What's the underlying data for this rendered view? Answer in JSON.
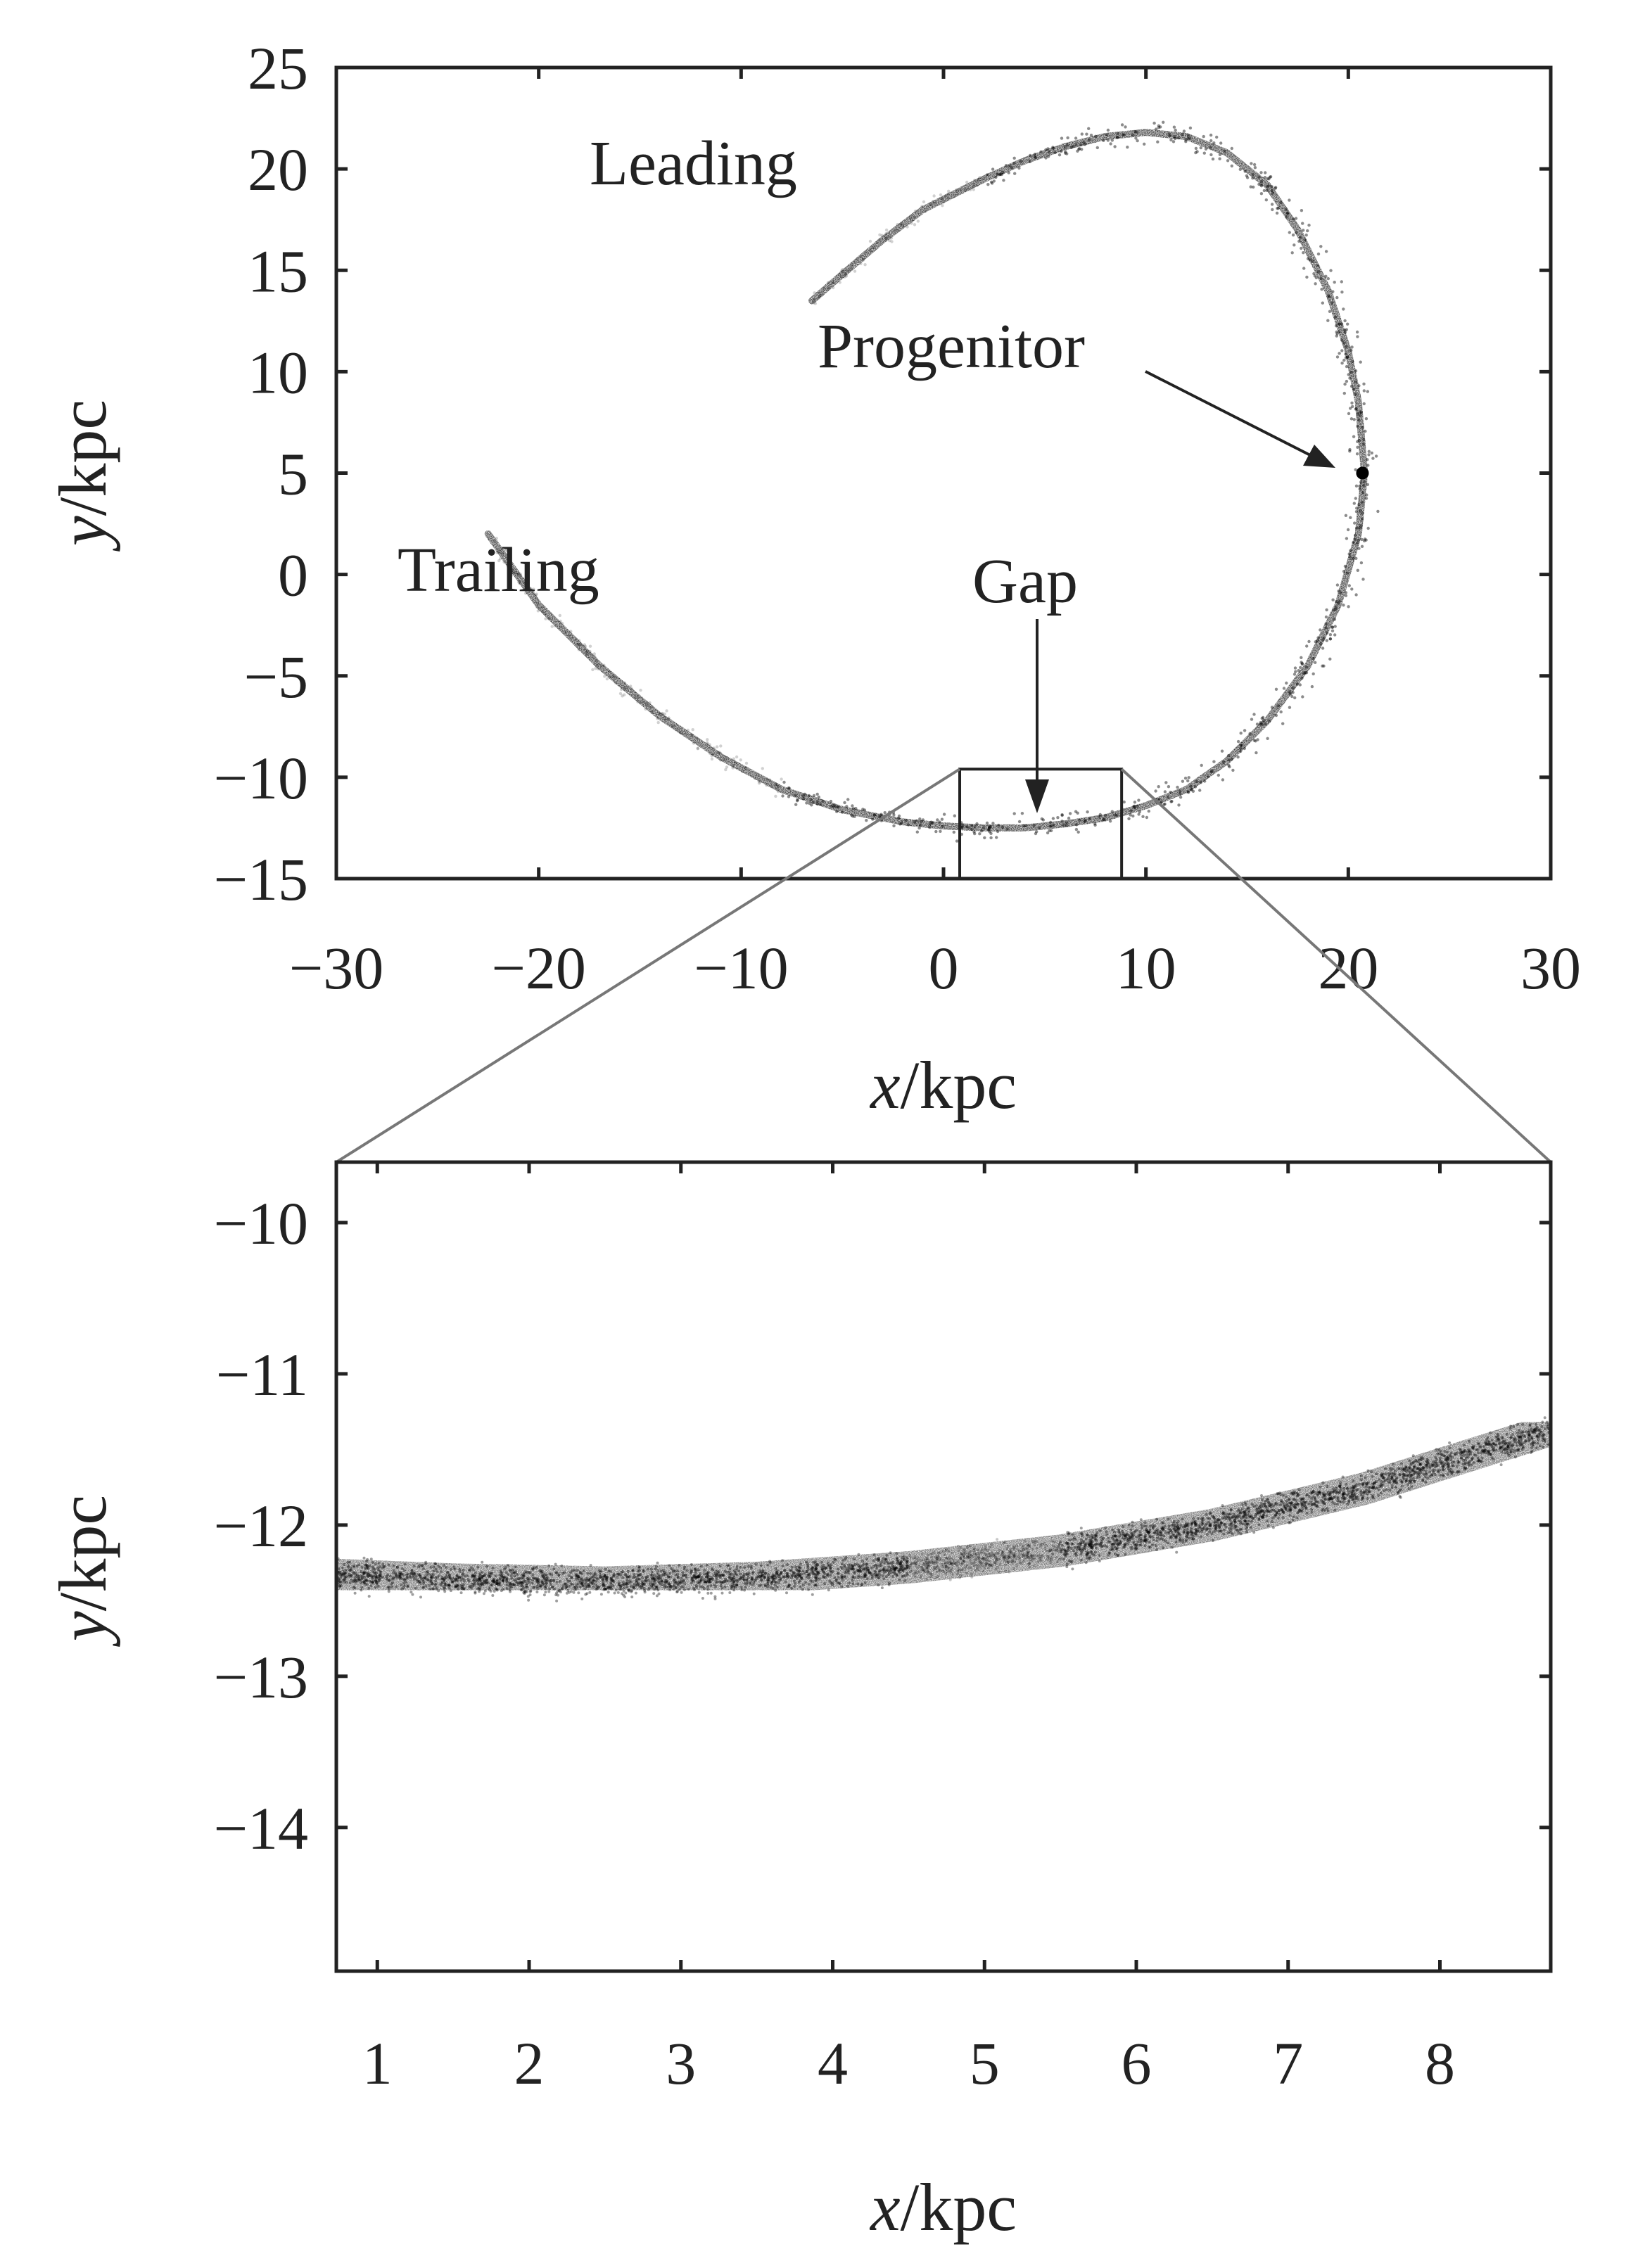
{
  "colors": {
    "foreground": "#222222",
    "stream_points": "#000000",
    "zoom_connector": "#777777",
    "background": "#ffffff"
  },
  "chart_data": [
    {
      "type": "scatter",
      "title": "",
      "xlabel": {
        "var": "x",
        "unit": "/kpc"
      },
      "ylabel": {
        "var": "y",
        "unit": "/kpc"
      },
      "xlim": [
        -30,
        30
      ],
      "ylim": [
        -15,
        25
      ],
      "xticks": [
        -30,
        -20,
        -10,
        0,
        10,
        20,
        30
      ],
      "xtick_labels": [
        "−30",
        "−20",
        "−10",
        "0",
        "10",
        "20",
        "30"
      ],
      "yticks": [
        -15,
        -10,
        -5,
        0,
        5,
        10,
        15,
        20,
        25
      ],
      "ytick_labels": [
        "−15",
        "−10",
        "−5",
        "0",
        "5",
        "10",
        "15",
        "20",
        "25"
      ],
      "grid": false,
      "stream_track": {
        "x": [
          -22.5,
          -20,
          -17,
          -14,
          -11,
          -8,
          -5,
          -2,
          0,
          2,
          4,
          6,
          8,
          10,
          12,
          14,
          16,
          18,
          19.5,
          20.5,
          20.8,
          20.5,
          20,
          19,
          17.5,
          16,
          14,
          12,
          10,
          8,
          6,
          4,
          2,
          -1,
          -3,
          -5,
          -6.5
        ],
        "y": [
          2.0,
          -1.5,
          -4.5,
          -7.0,
          -9.0,
          -10.6,
          -11.6,
          -12.2,
          -12.4,
          -12.5,
          -12.5,
          -12.3,
          -12.0,
          -11.4,
          -10.6,
          -9.2,
          -7.2,
          -4.5,
          -1.5,
          2.0,
          5.0,
          8.5,
          11.0,
          14.0,
          17.0,
          19.2,
          20.8,
          21.6,
          21.8,
          21.6,
          21.1,
          20.4,
          19.5,
          18.0,
          16.5,
          14.8,
          13.5
        ]
      },
      "progenitor": {
        "x": 20.7,
        "y": 5.0
      },
      "annotations": {
        "leading": "Leading",
        "trailing": "Trailing",
        "progenitor": "Progenitor",
        "gap": "Gap"
      },
      "zoom_box": {
        "x": [
          0.8,
          8.8
        ],
        "y": [
          -15,
          -9.6
        ]
      }
    },
    {
      "type": "scatter",
      "title": "",
      "xlabel": {
        "var": "x",
        "unit": "/kpc"
      },
      "ylabel": {
        "var": "y",
        "unit": "/kpc"
      },
      "xlim": [
        0.73,
        8.73
      ],
      "ylim": [
        -14.95,
        -9.6
      ],
      "xticks": [
        1,
        2,
        3,
        4,
        5,
        6,
        7,
        8
      ],
      "xtick_labels": [
        "1",
        "2",
        "3",
        "4",
        "5",
        "6",
        "7",
        "8"
      ],
      "yticks": [
        -14,
        -13,
        -12,
        -11,
        -10
      ],
      "ytick_labels": [
        "−14",
        "−13",
        "−12",
        "−11",
        "−10"
      ],
      "grid": false,
      "stream_track": {
        "x": [
          0.73,
          1.5,
          2.5,
          3.5,
          4.5,
          5.5,
          6.5,
          7.5,
          8.0,
          8.73
        ],
        "y": [
          -12.33,
          -12.36,
          -12.38,
          -12.35,
          -12.28,
          -12.17,
          -12.0,
          -11.76,
          -11.6,
          -11.37
        ]
      }
    }
  ]
}
